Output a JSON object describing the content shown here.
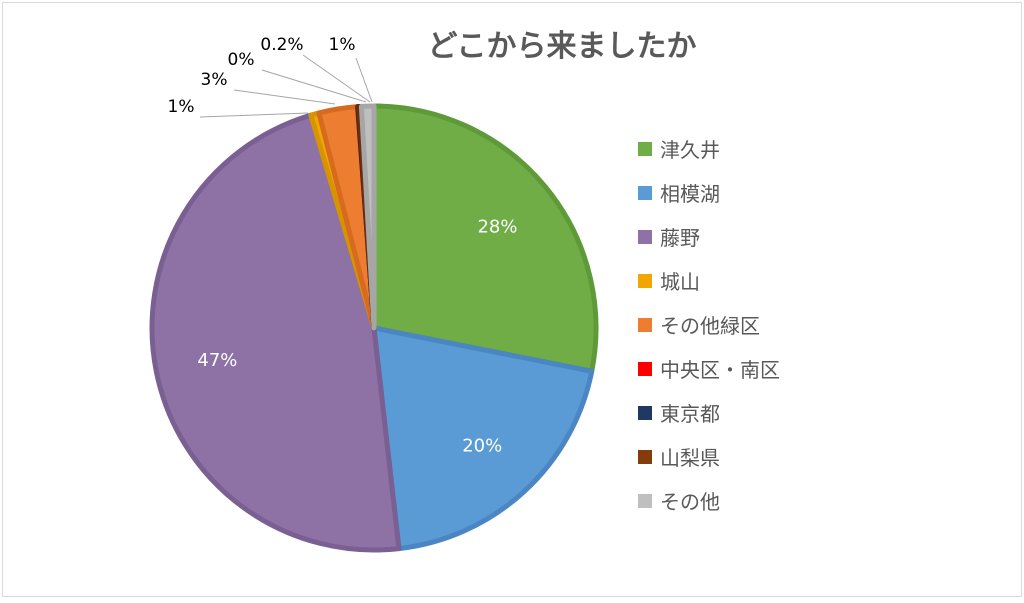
{
  "chart_data": {
    "type": "pie",
    "title": "どこから来ましたか",
    "legend_position": "right",
    "slices": [
      {
        "label": "津久井",
        "value": 28,
        "value_label": "28%",
        "color": "#70ad47",
        "border": "#5e9a37"
      },
      {
        "label": "相模湖",
        "value": 20,
        "value_label": "20%",
        "color": "#5b9bd5",
        "border": "#4a86c3"
      },
      {
        "label": "藤野",
        "value": 47,
        "value_label": "47%",
        "color": "#8e72a6",
        "border": "#7a5f93"
      },
      {
        "label": "城山",
        "value": 0.6,
        "value_label": "1%",
        "color": "#f0a800",
        "border": "#d89400"
      },
      {
        "label": "その他緑区",
        "value": 2.8,
        "value_label": "3%",
        "color": "#ed7d31",
        "border": "#d66b20"
      },
      {
        "label": "中央区・南区",
        "value": 0.02,
        "value_label": "0%",
        "color": "#ff0000",
        "border": "#d80000"
      },
      {
        "label": "東京都",
        "value": 0.05,
        "value_label": "",
        "color": "#203864",
        "border": "#172a4d"
      },
      {
        "label": "山梨県",
        "value": 0.2,
        "value_label": "0.2%",
        "color": "#843c0c",
        "border": "#6c3009"
      },
      {
        "label": "その他",
        "value": 0.9,
        "value_label": "1%",
        "color": "#bfbfbf",
        "border": "#a6a6a6"
      }
    ]
  }
}
